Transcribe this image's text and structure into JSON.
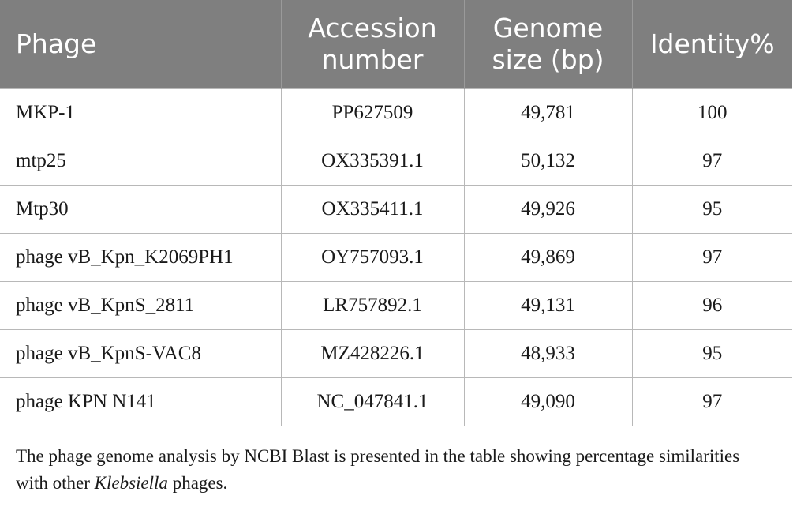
{
  "table": {
    "headers": [
      {
        "lines": [
          "Phage"
        ]
      },
      {
        "lines": [
          "Accession",
          "number"
        ]
      },
      {
        "lines": [
          "Genome",
          "size (bp)"
        ]
      },
      {
        "lines": [
          "Identity%"
        ]
      }
    ],
    "rows": [
      [
        "MKP-1",
        "PP627509",
        "49,781",
        "100"
      ],
      [
        "mtp25",
        "OX335391.1",
        "50,132",
        "97"
      ],
      [
        "Mtp30",
        "OX335411.1",
        "49,926",
        "95"
      ],
      [
        "phage vB_Kpn_K2069PH1",
        "OY757093.1",
        "49,869",
        "97"
      ],
      [
        "phage vB_KpnS_2811",
        "LR757892.1",
        "49,131",
        "96"
      ],
      [
        "phage vB_KpnS-VAC8",
        "MZ428226.1",
        "48,933",
        "95"
      ],
      [
        "phage KPN N141",
        "NC_047841.1",
        "49,090",
        "97"
      ]
    ]
  },
  "caption": {
    "text_before": "The phage genome analysis by NCBI Blast is presented in the table showing percentage similarities with other ",
    "italic": "Klebsiella",
    "text_after": " phages."
  },
  "colors": {
    "header_bg": "#7f7f7f",
    "header_text": "#ffffff",
    "border": "#b8b8b8"
  }
}
